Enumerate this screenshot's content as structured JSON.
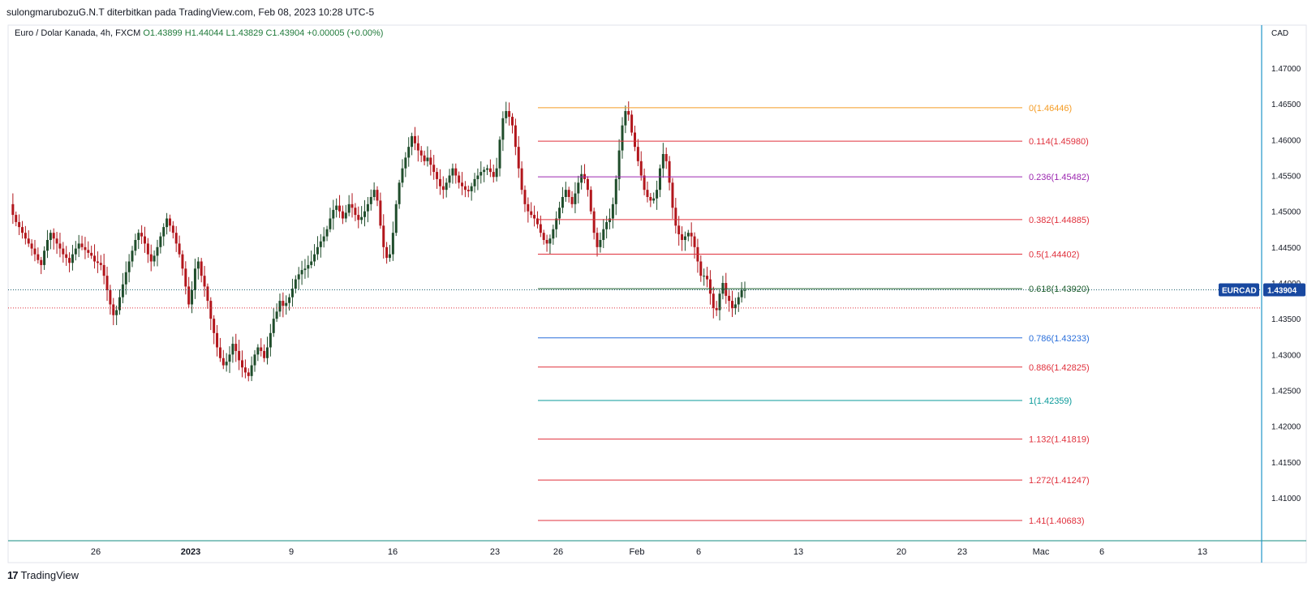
{
  "caption": "sulongmarubozuG.N.T diterbitkan pada TradingView.com, Feb 08, 2023 10:28 UTC-5",
  "legend": {
    "symbol": "Euro / Dolar Kanada, 4h, FXCM",
    "open": "O1.43899",
    "high": "H1.44044",
    "low": "L1.43829",
    "close": "C1.43904",
    "change": "+0.00005 (+0.00%)"
  },
  "brand": {
    "logo": "17",
    "name": "TradingView"
  },
  "price_axis": {
    "currency": "CAD",
    "badge_symbol": "EURCAD",
    "badge_price": "1.43904",
    "badge_color": "#1848a0"
  },
  "colors": {
    "up": "#1f4d2b",
    "down": "#b2161c",
    "axis_line": "#2196c8",
    "grid_h": "#138b80"
  },
  "chart_data": {
    "type": "candlestick",
    "y_ticks": [
      "1.47000",
      "1.46500",
      "1.46000",
      "1.45500",
      "1.45000",
      "1.44500",
      "1.44000",
      "1.43500",
      "1.43000",
      "1.42500",
      "1.42000",
      "1.41500",
      "1.41000"
    ],
    "ylim": [
      1.404,
      1.476
    ],
    "x_ticks": [
      {
        "label": "26",
        "bold": false
      },
      {
        "label": "2023",
        "bold": true
      },
      {
        "label": "9",
        "bold": false
      },
      {
        "label": "16",
        "bold": false
      },
      {
        "label": "23",
        "bold": false
      },
      {
        "label": "26",
        "bold": false
      },
      {
        "label": "Feb",
        "bold": false
      },
      {
        "label": "6",
        "bold": false
      },
      {
        "label": "13",
        "bold": false
      },
      {
        "label": "20",
        "bold": false
      },
      {
        "label": "23",
        "bold": false
      },
      {
        "label": "Mac",
        "bold": false
      },
      {
        "label": "6",
        "bold": false
      },
      {
        "label": "13",
        "bold": false
      }
    ],
    "current_price": 1.43904,
    "fibonacci": [
      {
        "label": "0(1.46446)",
        "price": 1.46446,
        "color": "#f59c24"
      },
      {
        "label": "0.114(1.45980)",
        "price": 1.4598,
        "color": "#e0303c"
      },
      {
        "label": "0.236(1.45482)",
        "price": 1.45482,
        "color": "#9c27b0"
      },
      {
        "label": "0.382(1.44885)",
        "price": 1.44885,
        "color": "#e0303c"
      },
      {
        "label": "0.5(1.44402)",
        "price": 1.44402,
        "color": "#e0303c"
      },
      {
        "label": "0.618(1.43920)",
        "price": 1.4392,
        "color": "#1f5f2e"
      },
      {
        "label": "0.786(1.43233)",
        "price": 1.43233,
        "color": "#2a6fdb"
      },
      {
        "label": "0.886(1.42825)",
        "price": 1.42825,
        "color": "#e0303c"
      },
      {
        "label": "1(1.42359)",
        "price": 1.42359,
        "color": "#0a9a9a"
      },
      {
        "label": "1.132(1.41819)",
        "price": 1.41819,
        "color": "#e0303c"
      },
      {
        "label": "1.272(1.41247)",
        "price": 1.41247,
        "color": "#e0303c"
      },
      {
        "label": "1.41(1.40683)",
        "price": 1.40683,
        "color": "#e0303c"
      }
    ],
    "reference_price_line": 1.4365,
    "price_path": [
      1.451,
      1.4495,
      1.4485,
      1.4478,
      1.447,
      1.4462,
      1.4455,
      1.4448,
      1.444,
      1.4432,
      1.4425,
      1.4445,
      1.446,
      1.447,
      1.4462,
      1.4455,
      1.4448,
      1.444,
      1.4435,
      1.4428,
      1.444,
      1.4448,
      1.4455,
      1.445,
      1.4446,
      1.4442,
      1.4438,
      1.443,
      1.4428,
      1.4425,
      1.441,
      1.439,
      1.437,
      1.4355,
      1.4362,
      1.438,
      1.4398,
      1.4415,
      1.443,
      1.4445,
      1.446,
      1.447,
      1.4465,
      1.4455,
      1.444,
      1.443,
      1.4438,
      1.445,
      1.4465,
      1.4478,
      1.449,
      1.448,
      1.447,
      1.4455,
      1.444,
      1.442,
      1.4395,
      1.437,
      1.439,
      1.442,
      1.443,
      1.441,
      1.4395,
      1.4375,
      1.435,
      1.433,
      1.431,
      1.4295,
      1.4285,
      1.429,
      1.43,
      1.4315,
      1.4305,
      1.4292,
      1.4282,
      1.4275,
      1.427,
      1.4285,
      1.43,
      1.431,
      1.4305,
      1.4295,
      1.431,
      1.433,
      1.435,
      1.436,
      1.4375,
      1.4368,
      1.4372,
      1.438,
      1.4392,
      1.4405,
      1.4412,
      1.4418,
      1.442,
      1.4425,
      1.443,
      1.444,
      1.445,
      1.4458,
      1.4465,
      1.4475,
      1.449,
      1.4502,
      1.4508,
      1.45,
      1.449,
      1.4498,
      1.451,
      1.4505,
      1.4495,
      1.4488,
      1.4492,
      1.45,
      1.451,
      1.452,
      1.453,
      1.4515,
      1.448,
      1.445,
      1.4435,
      1.444,
      1.447,
      1.451,
      1.454,
      1.456,
      1.4575,
      1.459,
      1.4605,
      1.4595,
      1.4585,
      1.4578,
      1.457,
      1.4575,
      1.4565,
      1.4555,
      1.4545,
      1.4535,
      1.453,
      1.454,
      1.455,
      1.456,
      1.455,
      1.454,
      1.4535,
      1.453,
      1.4528,
      1.4535,
      1.4545,
      1.455,
      1.4555,
      1.4558,
      1.456,
      1.4555,
      1.4548,
      1.456,
      1.46,
      1.463,
      1.464,
      1.4632,
      1.462,
      1.459,
      1.456,
      1.453,
      1.451,
      1.45,
      1.4495,
      1.449,
      1.4482,
      1.447,
      1.446,
      1.4455,
      1.4462,
      1.4475,
      1.449,
      1.4505,
      1.452,
      1.453,
      1.452,
      1.451,
      1.4525,
      1.454,
      1.4552,
      1.4545,
      1.453,
      1.45,
      1.447,
      1.445,
      1.446,
      1.4475,
      1.4485,
      1.449,
      1.451,
      1.4545,
      1.4585,
      1.462,
      1.464,
      1.4635,
      1.461,
      1.459,
      1.457,
      1.455,
      1.453,
      1.452,
      1.4515,
      1.4518,
      1.453,
      1.456,
      1.458,
      1.457,
      1.454,
      1.4505,
      1.448,
      1.4468,
      1.446,
      1.4465,
      1.447,
      1.4465,
      1.445,
      1.443,
      1.441,
      1.441,
      1.4405,
      1.4385,
      1.4365,
      1.4362,
      1.4385,
      1.44,
      1.4382,
      1.4375,
      1.4365,
      1.437,
      1.438,
      1.439,
      1.439
    ]
  }
}
